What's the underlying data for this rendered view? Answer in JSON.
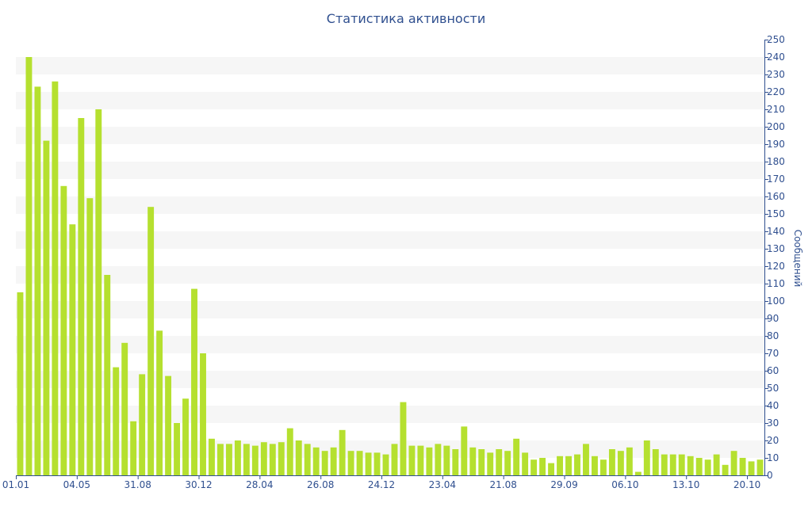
{
  "chart_data": {
    "type": "bar",
    "title": "Статистика активности",
    "ylabel": "Сообщений",
    "xlabel": "",
    "ylim": [
      0,
      250
    ],
    "y_ticks": [
      0,
      10,
      20,
      30,
      40,
      50,
      60,
      70,
      80,
      90,
      100,
      110,
      120,
      130,
      140,
      150,
      160,
      170,
      180,
      190,
      200,
      210,
      220,
      230,
      240,
      250
    ],
    "x_tick_labels": [
      {
        "label": "01.01",
        "index": 0
      },
      {
        "label": "04.05",
        "index": 7
      },
      {
        "label": "31.08",
        "index": 14
      },
      {
        "label": "30.12",
        "index": 21
      },
      {
        "label": "28.04",
        "index": 28
      },
      {
        "label": "26.08",
        "index": 35
      },
      {
        "label": "24.12",
        "index": 42
      },
      {
        "label": "23.04",
        "index": 49
      },
      {
        "label": "21.08",
        "index": 56
      },
      {
        "label": "29.09",
        "index": 63
      },
      {
        "label": "06.10",
        "index": 70
      },
      {
        "label": "13.10",
        "index": 77
      },
      {
        "label": "20.10",
        "index": 84
      }
    ],
    "grid": "horizontal alternating bands",
    "bar_color": "#b5e02f",
    "band_color": "#f6f6f6",
    "axis_color": "#2f4f8f",
    "values": [
      105,
      240,
      223,
      192,
      226,
      166,
      144,
      205,
      159,
      210,
      115,
      62,
      76,
      31,
      58,
      154,
      83,
      57,
      30,
      44,
      107,
      70,
      21,
      18,
      18,
      20,
      18,
      17,
      19,
      18,
      19,
      27,
      20,
      18,
      16,
      14,
      16,
      26,
      14,
      14,
      13,
      13,
      12,
      18,
      42,
      17,
      17,
      16,
      18,
      17,
      15,
      28,
      16,
      15,
      13,
      15,
      14,
      21,
      13,
      9,
      10,
      7,
      11,
      11,
      12,
      18,
      11,
      9,
      15,
      14,
      16,
      2,
      20,
      15,
      12,
      12,
      12,
      11,
      10,
      9,
      12,
      6,
      14,
      10,
      8,
      9
    ]
  }
}
